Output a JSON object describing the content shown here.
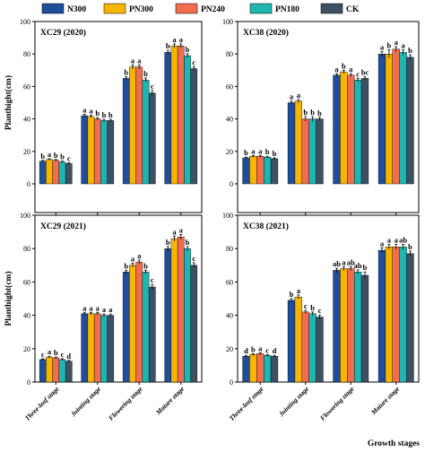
{
  "figure": {
    "colors": [
      "#1f4e9c",
      "#f7b500",
      "#f26c4f",
      "#1fb5b0",
      "#3e5164"
    ],
    "xlabel": "Growth stages",
    "ylabel": "Planthight(cm)",
    "legend": [
      "N300",
      "PN300",
      "PN240",
      "PN180",
      "CK"
    ]
  },
  "chart_data": [
    {
      "type": "bar",
      "title": "XC29 (2020)",
      "categories": [
        "Three-leaf stage",
        "Jointing stage",
        "Flowering stage",
        "Mature stage"
      ],
      "ylabel": "Planthight(cm)",
      "xlabel": "",
      "ylim": [
        0,
        100
      ],
      "yticks": [
        "0",
        "20",
        "40",
        "60",
        "80",
        "100"
      ],
      "series": [
        {
          "name": "N300",
          "values": [
            14,
            42,
            65,
            81
          ],
          "errors": [
            0.5,
            0.8,
            1.0,
            1.2
          ],
          "letters": [
            "b",
            "a",
            "b",
            "b"
          ]
        },
        {
          "name": "PN300",
          "values": [
            15,
            41.5,
            72,
            85
          ],
          "errors": [
            0.5,
            0.8,
            1.2,
            1.2
          ],
          "letters": [
            "a",
            "a",
            "a",
            "a"
          ]
        },
        {
          "name": "PN240",
          "values": [
            14.5,
            40,
            72,
            85
          ],
          "errors": [
            0.5,
            0.8,
            1.2,
            1.2
          ],
          "letters": [
            "b",
            "b",
            "a",
            "a"
          ]
        },
        {
          "name": "PN180",
          "values": [
            13.5,
            39,
            64,
            79
          ],
          "errors": [
            0.5,
            0.8,
            1.2,
            1.2
          ],
          "letters": [
            "b",
            "b",
            "b",
            "b"
          ]
        },
        {
          "name": "CK",
          "values": [
            12.5,
            39,
            56,
            71
          ],
          "errors": [
            0.5,
            0.8,
            1.5,
            1.2
          ],
          "letters": [
            "c",
            "b",
            "c",
            "c"
          ]
        }
      ]
    },
    {
      "type": "bar",
      "title": "XC38 (2020)",
      "categories": [
        "Three-leaf stage",
        "Jointing stage",
        "Flowering stage",
        "Mature stage"
      ],
      "ylabel": "",
      "xlabel": "",
      "ylim": [
        0,
        100
      ],
      "yticks": [
        "0",
        "20",
        "40",
        "60",
        "80",
        "100"
      ],
      "series": [
        {
          "name": "N300",
          "values": [
            16,
            50,
            67,
            80
          ],
          "errors": [
            0.5,
            1.0,
            1.0,
            1.5
          ],
          "letters": [
            "b",
            "a",
            "a",
            "a"
          ]
        },
        {
          "name": "PN300",
          "values": [
            17,
            51,
            69,
            80
          ],
          "errors": [
            0.5,
            1.0,
            1.0,
            2.5
          ],
          "letters": [
            "a",
            "a",
            "b",
            "b"
          ]
        },
        {
          "name": "PN240",
          "values": [
            17,
            40,
            67,
            83
          ],
          "errors": [
            0.5,
            1.5,
            1.0,
            1.5
          ],
          "letters": [
            "a",
            "b",
            "a",
            "a"
          ]
        },
        {
          "name": "PN180",
          "values": [
            16.5,
            40,
            64,
            81
          ],
          "errors": [
            0.5,
            1.5,
            1.0,
            1.5
          ],
          "letters": [
            "b",
            "b",
            "c",
            "a"
          ]
        },
        {
          "name": "CK",
          "values": [
            15.5,
            40,
            65,
            78
          ],
          "errors": [
            0.5,
            1.0,
            1.0,
            1.5
          ],
          "letters": [
            "b",
            "b",
            "bc",
            "b"
          ]
        }
      ]
    },
    {
      "type": "bar",
      "title": "XC29 (2021)",
      "categories": [
        "Three-leaf stage",
        "Jointing stage",
        "Flowering stage",
        "Mature stage"
      ],
      "ylabel": "Planthight(cm)",
      "xlabel": "",
      "ylim": [
        0,
        100
      ],
      "yticks": [
        "0",
        "20",
        "40",
        "60",
        "80",
        "100"
      ],
      "series": [
        {
          "name": "N300",
          "values": [
            13.5,
            41,
            66,
            80
          ],
          "errors": [
            0.5,
            0.8,
            1.0,
            1.2
          ],
          "letters": [
            "c",
            "a",
            "b",
            "b"
          ]
        },
        {
          "name": "PN300",
          "values": [
            15,
            41,
            70,
            86
          ],
          "errors": [
            0.5,
            0.8,
            1.2,
            1.5
          ],
          "letters": [
            "a",
            "a",
            "a",
            "a"
          ]
        },
        {
          "name": "PN240",
          "values": [
            14.5,
            41,
            72,
            87
          ],
          "errors": [
            0.5,
            0.8,
            1.2,
            1.5
          ],
          "letters": [
            "b",
            "a",
            "a",
            "a"
          ]
        },
        {
          "name": "PN180",
          "values": [
            13.5,
            40,
            66,
            80
          ],
          "errors": [
            0.5,
            0.8,
            1.0,
            1.2
          ],
          "letters": [
            "c",
            "a",
            "b",
            "b"
          ]
        },
        {
          "name": "CK",
          "values": [
            12.5,
            40,
            57,
            70
          ],
          "errors": [
            0.5,
            0.8,
            1.5,
            1.5
          ],
          "letters": [
            "d",
            "a",
            "c",
            "c"
          ]
        }
      ]
    },
    {
      "type": "bar",
      "title": "XC38 (2021)",
      "categories": [
        "Three-leaf stage",
        "Jointing stage",
        "Flowering stage",
        "Mature stage"
      ],
      "ylabel": "",
      "xlabel": "Growth stages",
      "ylim": [
        0,
        100
      ],
      "yticks": [
        "0",
        "20",
        "40",
        "60",
        "80",
        "100"
      ],
      "series": [
        {
          "name": "N300",
          "values": [
            15.5,
            49,
            67,
            79
          ],
          "errors": [
            0.5,
            1.0,
            1.2,
            1.5
          ],
          "letters": [
            "d",
            "b",
            "ab",
            "a"
          ]
        },
        {
          "name": "PN300",
          "values": [
            16.5,
            51,
            68,
            81
          ],
          "errors": [
            0.5,
            1.2,
            1.2,
            1.5
          ],
          "letters": [
            "b",
            "a",
            "a",
            "a"
          ]
        },
        {
          "name": "PN240",
          "values": [
            17,
            42,
            68,
            81
          ],
          "errors": [
            0.5,
            1.0,
            1.2,
            1.5
          ],
          "letters": [
            "a",
            "c",
            "ab",
            "a"
          ]
        },
        {
          "name": "PN180",
          "values": [
            16,
            41,
            66,
            81
          ],
          "errors": [
            0.5,
            1.0,
            1.2,
            1.5
          ],
          "letters": [
            "c",
            "b",
            "ab",
            "ab"
          ]
        },
        {
          "name": "CK",
          "values": [
            15.5,
            39,
            64,
            77
          ],
          "errors": [
            0.5,
            1.2,
            2.0,
            1.5
          ],
          "letters": [
            "d",
            "c",
            "b",
            "b"
          ]
        }
      ]
    }
  ]
}
